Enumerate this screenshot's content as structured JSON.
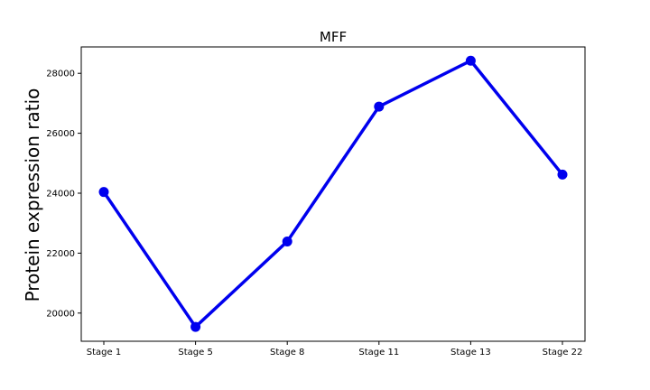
{
  "chart_data": {
    "type": "line",
    "title": "MFF",
    "xlabel": "",
    "ylabel": "Protein expression ratio",
    "categories": [
      "Stage 1",
      "Stage 5",
      "Stage 8",
      "Stage 11",
      "Stage 13",
      "Stage 22"
    ],
    "series": [
      {
        "values": [
          24040,
          19540,
          22390,
          26890,
          28420,
          24620
        ]
      }
    ],
    "ylim": [
      19060,
      28880
    ],
    "yticks": [
      20000,
      22000,
      24000,
      26000,
      28000
    ],
    "grid": false,
    "line_color": "#0000ee",
    "marker": "circle"
  }
}
